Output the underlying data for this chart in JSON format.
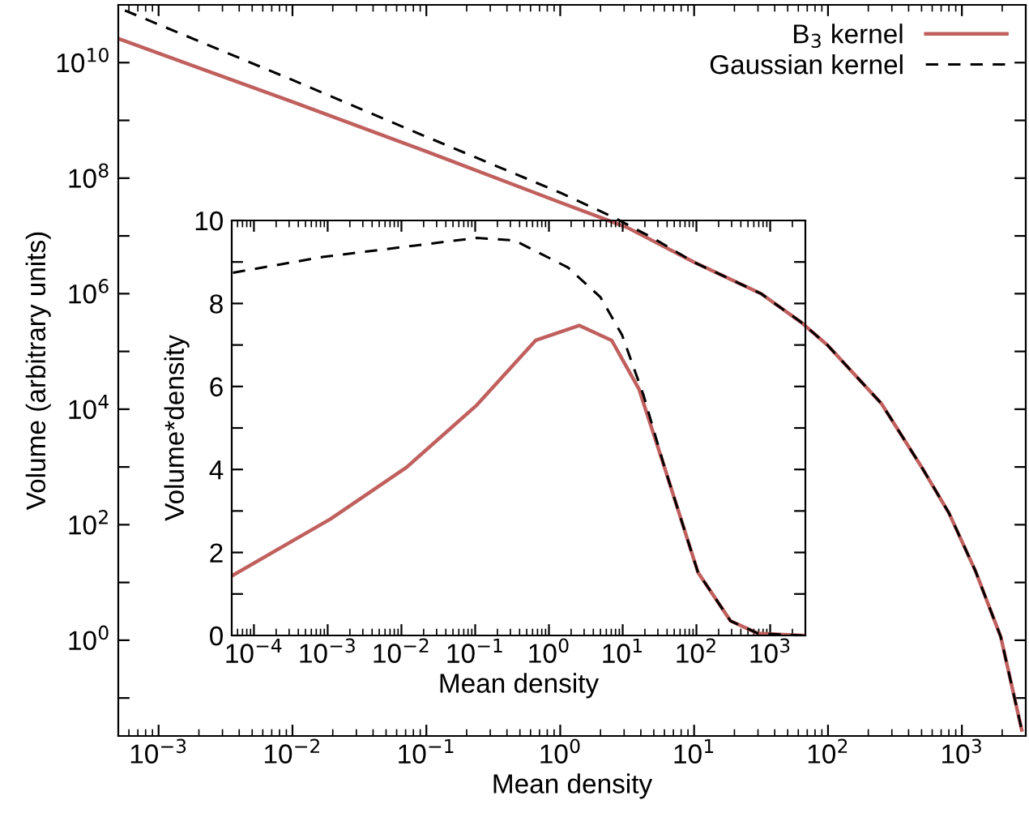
{
  "chart_data": [
    {
      "type": "line",
      "xlabel": "Mean density",
      "ylabel": "Volume (arbitrary units)",
      "log": "xy",
      "legend": "top right",
      "grid": false,
      "xlim": [
        0.0005,
        3000
      ],
      "ylim": [
        0.022,
        100000000000.0
      ],
      "xticks": [
        {
          "value": 0.001,
          "label": "10$^{−3}$"
        },
        {
          "value": 0.01,
          "label": "10$^{−2}$"
        },
        {
          "value": 0.1,
          "label": "10$^{−1}$"
        },
        {
          "value": 1,
          "label": "10$^{0}$"
        },
        {
          "value": 10,
          "label": "10$^{1}$"
        },
        {
          "value": 100,
          "label": "10$^{2}$"
        },
        {
          "value": 1000,
          "label": "10$^{3}$"
        }
      ],
      "yticks": [
        {
          "value": 0.1,
          "label": null
        },
        {
          "value": 1,
          "label": "10$^{0}$"
        },
        {
          "value": 10,
          "label": null
        },
        {
          "value": 100,
          "label": "10$^{2}$"
        },
        {
          "value": 1000,
          "label": null
        },
        {
          "value": 10000,
          "label": "10$^{4}$"
        },
        {
          "value": 100000,
          "label": null
        },
        {
          "value": 1000000,
          "label": "10$^{6}$"
        },
        {
          "value": 10000000,
          "label": null
        },
        {
          "value": 100000000,
          "label": "10$^{8}$"
        },
        {
          "value": 1000000000,
          "label": null
        },
        {
          "value": 10000000000,
          "label": "10$^{10}$"
        }
      ],
      "series": [
        {
          "name": "B$_{3}$ kernel",
          "color": "#c0605e",
          "line_style": "solid",
          "x": [
            0.0005,
            0.01,
            0.1,
            1,
            3.16,
            10,
            31.6,
            63,
            100,
            250,
            500,
            800,
            1260,
            1950,
            2800
          ],
          "values": [
            26000000000.0,
            2100000000.0,
            290000000.0,
            38000000.0,
            14000000.0,
            3500000.0,
            1000000.0,
            320000.0,
            126000.0,
            12600.0,
            1000,
            160,
            16,
            1.15,
            0.028
          ]
        },
        {
          "name": "Gaussian kernel",
          "color": "#000000",
          "line_style": "dashed",
          "x": [
            0.00056,
            0.01,
            0.1,
            1,
            2.5,
            5,
            10,
            31.6,
            63,
            100,
            250,
            500,
            800,
            1260,
            1950,
            2800
          ],
          "values": [
            80000000000.0,
            5000000000.0,
            520000000.0,
            56000000.0,
            21000000.0,
            9000000.0,
            3500000.0,
            1000000.0,
            320000.0,
            126000.0,
            12600.0,
            1000,
            160,
            16,
            1.15,
            0.028
          ]
        }
      ]
    },
    {
      "type": "line",
      "xlabel": "Mean density",
      "ylabel": "Volume*density",
      "log": "x",
      "grid": false,
      "xlim": [
        5e-05,
        3000
      ],
      "ylim": [
        0,
        10
      ],
      "xticks": [
        {
          "value": 0.0001,
          "label": "10$^{−4}$"
        },
        {
          "value": 0.001,
          "label": "10$^{−3}$"
        },
        {
          "value": 0.01,
          "label": "10$^{−2}$"
        },
        {
          "value": 0.1,
          "label": "10$^{−1}$"
        },
        {
          "value": 1,
          "label": "10$^{0}$"
        },
        {
          "value": 10,
          "label": "10$^{1}$"
        },
        {
          "value": 100,
          "label": "10$^{2}$"
        },
        {
          "value": 1000,
          "label": "10$^{3}$"
        }
      ],
      "yticks": [
        0,
        {
          "value": 1,
          "label": null
        },
        2,
        {
          "value": 3,
          "label": null
        },
        4,
        {
          "value": 5,
          "label": null
        },
        6,
        {
          "value": 7,
          "label": null
        },
        8,
        {
          "value": 9,
          "label": null
        },
        10
      ],
      "series": [
        {
          "color": "#c0605e",
          "line_style": "solid",
          "x": [
            5.2e-05,
            0.0011,
            0.0117,
            0.105,
            0.66,
            2.57,
            7.1,
            16.6,
            38,
            105,
            290,
            680,
            2800
          ],
          "values": [
            1.45,
            2.81,
            4.05,
            5.55,
            7.11,
            7.47,
            7.11,
            5.94,
            3.98,
            1.52,
            0.35,
            0.05,
            0
          ]
        },
        {
          "color": "#000000",
          "line_style": "dashed",
          "x": [
            5.2e-05,
            0.00085,
            0.105,
            0.34,
            1.8,
            5,
            9.8,
            19,
            38,
            105,
            290,
            680,
            2800
          ],
          "values": [
            8.74,
            9.12,
            9.58,
            9.52,
            8.87,
            8.15,
            7.24,
            5.81,
            3.98,
            1.52,
            0.35,
            0.05,
            0
          ]
        }
      ]
    }
  ]
}
